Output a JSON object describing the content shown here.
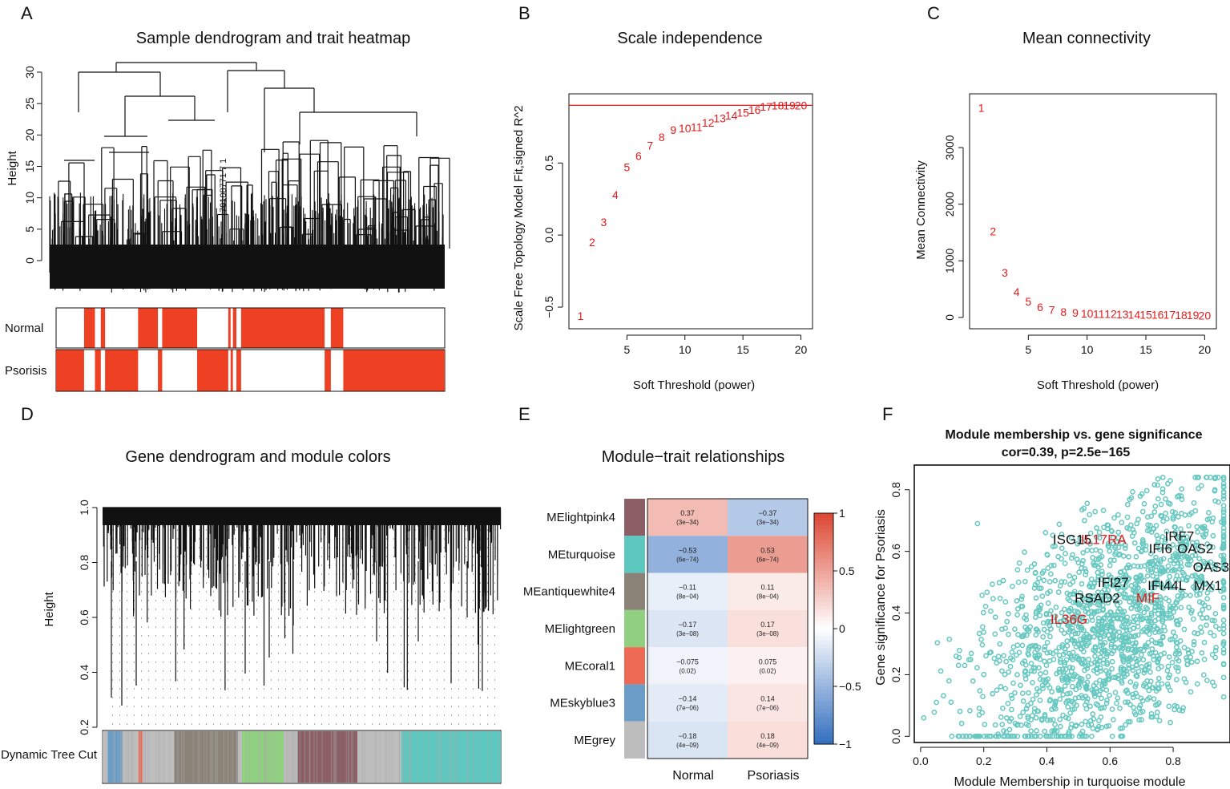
{
  "panels": [
    {
      "letter": "A",
      "title": "Sample dendrogram and trait heatmap"
    },
    {
      "letter": "B",
      "title": "Scale independence"
    },
    {
      "letter": "C",
      "title": "Mean connectivity"
    },
    {
      "letter": "D",
      "title": "Gene dendrogram and module colors"
    },
    {
      "letter": "E",
      "title": "Module−trait relationships"
    },
    {
      "letter": "F",
      "title": "Module membership vs. gene significance"
    }
  ],
  "colors": {
    "red": "#e41a1c",
    "teal": "#66c8c0",
    "trait": "#ee4023"
  },
  "chart_data": [
    {
      "id": "A",
      "type": "dendrogram",
      "title": "Sample dendrogram and trait heatmap",
      "ylabel": "Height",
      "ylim": [
        0,
        33
      ],
      "yticks": [
        0,
        5,
        10,
        15,
        20,
        25,
        30
      ],
      "sample_label_fragment": "70108771 7 1",
      "traits": [
        {
          "name": "Normal",
          "present": [
            [
              0.072,
              0.1
            ],
            [
              0.115,
              0.126
            ],
            [
              0.211,
              0.262
            ],
            [
              0.273,
              0.363
            ],
            [
              0.443,
              0.449
            ],
            [
              0.455,
              0.464
            ],
            [
              0.476,
              0.691
            ],
            [
              0.707,
              0.739
            ]
          ]
        },
        {
          "name": "Psorisis",
          "present": [
            [
              0,
              0.072
            ],
            [
              0.1,
              0.115
            ],
            [
              0.126,
              0.211
            ],
            [
              0.262,
              0.273
            ],
            [
              0.363,
              0.443
            ],
            [
              0.449,
              0.455
            ],
            [
              0.464,
              0.476
            ],
            [
              0.691,
              0.707
            ],
            [
              0.739,
              1
            ]
          ]
        }
      ]
    },
    {
      "id": "B",
      "type": "scatter",
      "title": "Scale independence",
      "xlabel": "Soft Threshold (power)",
      "ylabel": "Scale Free Topology Model Fit,signed R^2",
      "xlim": [
        0,
        21
      ],
      "ylim": [
        -0.65,
        0.98
      ],
      "xticks": [
        5,
        10,
        15,
        20
      ],
      "yticks": [
        -0.5,
        0.0,
        0.5
      ],
      "hline": 0.9,
      "x": [
        1,
        2,
        3,
        4,
        5,
        6,
        7,
        8,
        9,
        10,
        11,
        12,
        13,
        14,
        15,
        16,
        17,
        18,
        19,
        20
      ],
      "y": [
        -0.56,
        -0.05,
        0.09,
        0.28,
        0.47,
        0.55,
        0.62,
        0.68,
        0.73,
        0.74,
        0.75,
        0.78,
        0.81,
        0.83,
        0.85,
        0.87,
        0.89,
        0.9,
        0.9,
        0.9
      ]
    },
    {
      "id": "C",
      "type": "scatter",
      "title": "Mean connectivity",
      "xlabel": "Soft Threshold (power)",
      "ylabel": "Mean Connectivity",
      "xlim": [
        0,
        21
      ],
      "ylim": [
        -200,
        3950
      ],
      "xticks": [
        5,
        10,
        15,
        20
      ],
      "yticks": [
        0,
        1000,
        2000,
        3000
      ],
      "x": [
        1,
        2,
        3,
        4,
        5,
        6,
        7,
        8,
        9,
        10,
        11,
        12,
        13,
        14,
        15,
        16,
        17,
        18,
        19,
        20
      ],
      "y": [
        3700,
        1520,
        790,
        450,
        280,
        180,
        130,
        100,
        80,
        70,
        65,
        60,
        55,
        50,
        50,
        45,
        45,
        40,
        40,
        35
      ]
    },
    {
      "id": "D",
      "type": "dendrogram",
      "title": "Gene dendrogram and module colors",
      "ylabel": "Height",
      "ylim": [
        0.2,
        1.0
      ],
      "yticks": [
        0.2,
        0.4,
        0.6,
        0.8,
        1.0
      ],
      "color_row_label": "Dynamic Tree Cut",
      "module_colors": [
        {
          "name": "grey",
          "color": "#bdbdbd",
          "start": 0,
          "end": 0.013
        },
        {
          "name": "skyblue3",
          "color": "#6a9ec8",
          "start": 0.013,
          "end": 0.05
        },
        {
          "name": "grey",
          "color": "#bdbdbd",
          "start": 0.05,
          "end": 0.09
        },
        {
          "name": "coral1",
          "color": "#ee6a55",
          "start": 0.09,
          "end": 0.1
        },
        {
          "name": "grey",
          "color": "#bdbdbd",
          "start": 0.1,
          "end": 0.18
        },
        {
          "name": "antiquewhite4",
          "color": "#8b8378",
          "start": 0.18,
          "end": 0.34
        },
        {
          "name": "grey",
          "color": "#bdbdbd",
          "start": 0.34,
          "end": 0.35
        },
        {
          "name": "lightgreen",
          "color": "#90d080",
          "start": 0.35,
          "end": 0.455
        },
        {
          "name": "grey",
          "color": "#bdbdbd",
          "start": 0.455,
          "end": 0.49
        },
        {
          "name": "lightpink4",
          "color": "#8b5f65",
          "start": 0.49,
          "end": 0.64
        },
        {
          "name": "grey",
          "color": "#bdbdbd",
          "start": 0.64,
          "end": 0.75
        },
        {
          "name": "turquoise",
          "color": "#5cc8c0",
          "start": 0.75,
          "end": 1
        }
      ]
    },
    {
      "id": "E",
      "type": "heatmap",
      "title": "Module−trait relationships",
      "columns": [
        "Normal",
        "Psoriasis"
      ],
      "rows": [
        {
          "module": "MElightpink4",
          "color": "#8b5f65",
          "cells": [
            [
              "0.37",
              "(3e−34)"
            ],
            [
              "−0.37",
              "(3e−34)"
            ]
          ],
          "values": [
            0.37,
            -0.37
          ]
        },
        {
          "module": "MEturquoise",
          "color": "#5cc8c0",
          "cells": [
            [
              "−0.53",
              "(6e−74)"
            ],
            [
              "0.53",
              "(6e−74)"
            ]
          ],
          "values": [
            -0.53,
            0.53
          ]
        },
        {
          "module": "MEantiquewhite4",
          "color": "#8b8378",
          "cells": [
            [
              "−0.11",
              "(8e−04)"
            ],
            [
              "0.11",
              "(8e−04)"
            ]
          ],
          "values": [
            -0.11,
            0.11
          ]
        },
        {
          "module": "MElightgreen",
          "color": "#90d080",
          "cells": [
            [
              "−0.17",
              "(3e−08)"
            ],
            [
              "0.17",
              "(3e−08)"
            ]
          ],
          "values": [
            -0.17,
            0.17
          ]
        },
        {
          "module": "MEcoral1",
          "color": "#ee6a55",
          "cells": [
            [
              "−0.075",
              "(0.02)"
            ],
            [
              "0.075",
              "(0.02)"
            ]
          ],
          "values": [
            -0.075,
            0.075
          ]
        },
        {
          "module": "MEskyblue3",
          "color": "#6a9ec8",
          "cells": [
            [
              "−0.14",
              "(7e−06)"
            ],
            [
              "0.14",
              "(7e−06)"
            ]
          ],
          "values": [
            -0.14,
            0.14
          ]
        },
        {
          "module": "MEgrey",
          "color": "#bdbdbd",
          "cells": [
            [
              "−0.18",
              "(4e−09)"
            ],
            [
              "0.18",
              "(4e−09)"
            ]
          ],
          "values": [
            -0.18,
            0.18
          ]
        }
      ],
      "scale": {
        "range": [
          -1,
          1
        ],
        "ticks": [
          {
            "v": 1,
            "t": "1"
          },
          {
            "v": 0.5,
            "t": "0.5"
          },
          {
            "v": 0,
            "t": "0"
          },
          {
            "v": -0.5,
            "t": "−0.5"
          },
          {
            "v": -1,
            "t": "−1"
          }
        ]
      }
    },
    {
      "id": "F",
      "type": "scatter",
      "title": "Module membership vs. gene significance",
      "subtitle": "cor=0.39, p=2.5e−165",
      "xlabel": "Module Membership in turquoise module",
      "ylabel": "Gene significance for  Psoriasis",
      "xlim": [
        -0.02,
        0.98
      ],
      "ylim": [
        -0.02,
        0.88
      ],
      "xticks": [
        0.0,
        0.2,
        0.4,
        0.6,
        0.8
      ],
      "yticks": [
        0.0,
        0.2,
        0.4,
        0.6,
        0.8
      ],
      "point_color": "#66c8c0",
      "genes": [
        {
          "name": "ISG15",
          "x": 0.48,
          "y": 0.64,
          "color": "#111111"
        },
        {
          "name": "IL17RA",
          "x": 0.58,
          "y": 0.64,
          "color": "#e41a1c"
        },
        {
          "name": "IRF7",
          "x": 0.82,
          "y": 0.65,
          "color": "#111111"
        },
        {
          "name": "IFI6",
          "x": 0.76,
          "y": 0.61,
          "color": "#111111"
        },
        {
          "name": "OAS2",
          "x": 0.87,
          "y": 0.61,
          "color": "#111111"
        },
        {
          "name": "OAS3",
          "x": 0.92,
          "y": 0.55,
          "color": "#111111"
        },
        {
          "name": "IFI27",
          "x": 0.61,
          "y": 0.5,
          "color": "#111111"
        },
        {
          "name": "IFI44L",
          "x": 0.78,
          "y": 0.49,
          "color": "#111111"
        },
        {
          "name": "MX1",
          "x": 0.91,
          "y": 0.49,
          "color": "#111111"
        },
        {
          "name": "RSAD2",
          "x": 0.56,
          "y": 0.45,
          "color": "#111111"
        },
        {
          "name": "MIF",
          "x": 0.72,
          "y": 0.45,
          "color": "#e41a1c"
        },
        {
          "name": "IL36G",
          "x": 0.47,
          "y": 0.38,
          "color": "#e41a1c"
        }
      ]
    }
  ]
}
